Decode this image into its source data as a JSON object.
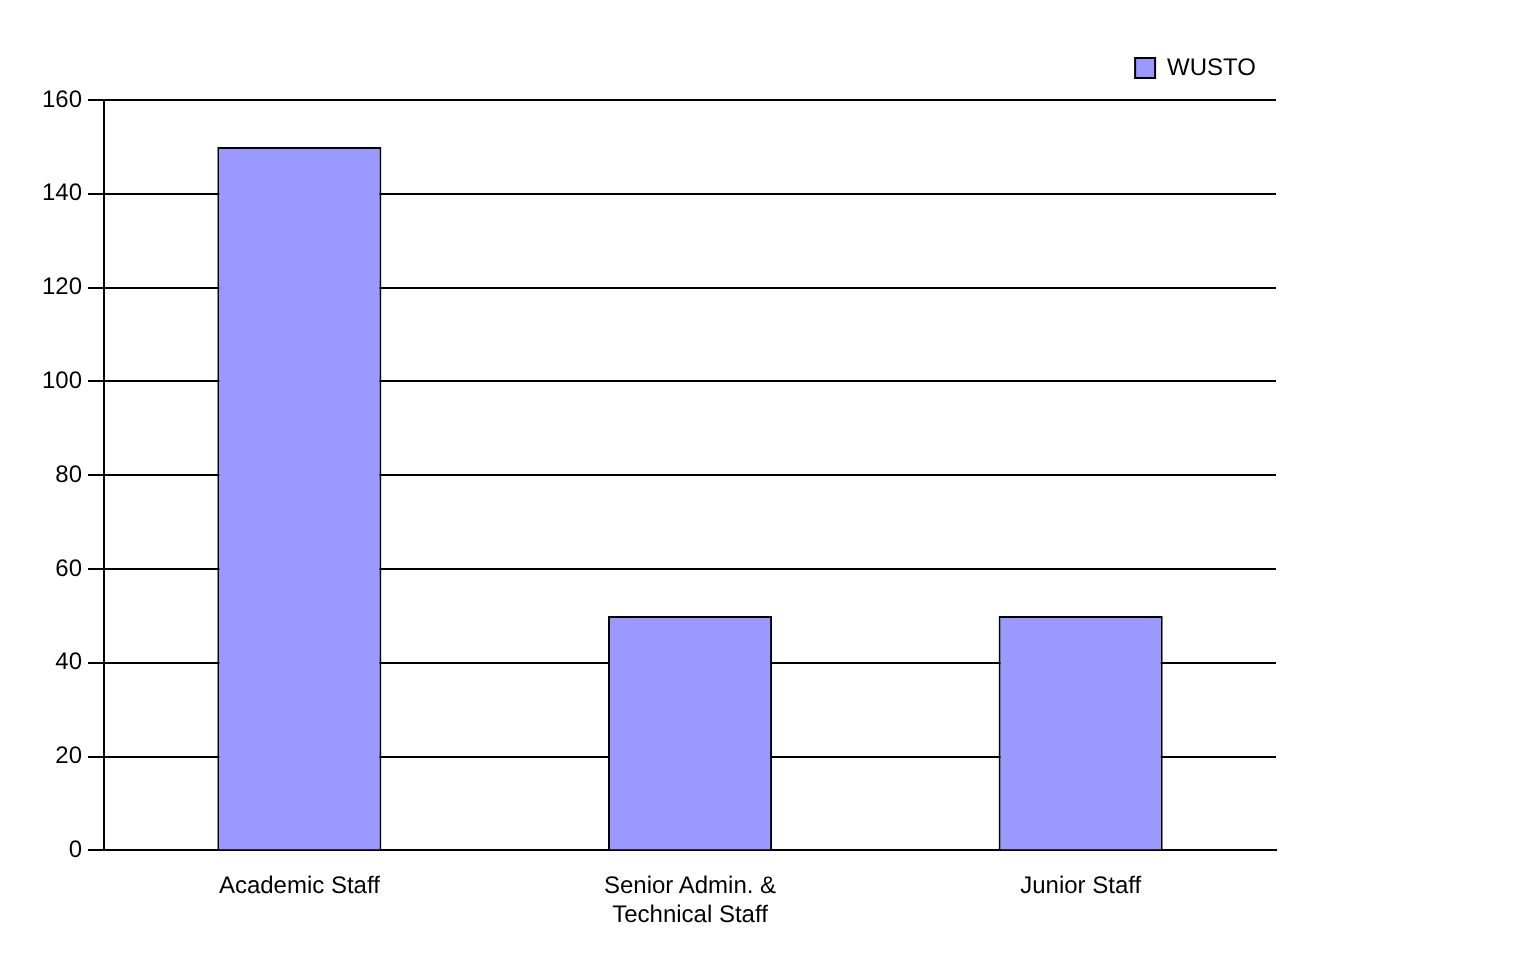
{
  "chart_data": {
    "type": "bar",
    "categories": [
      "Academic Staff",
      "Senior Admin. & Technical Staff",
      "Junior Staff"
    ],
    "series": [
      {
        "name": "WUSTO",
        "color": "#9999ff",
        "values": [
          150,
          50,
          50
        ]
      }
    ],
    "ylim": [
      0,
      160
    ],
    "yticks": [
      0,
      20,
      40,
      60,
      80,
      100,
      120,
      140,
      160
    ],
    "grid": "y",
    "legend": "top right"
  }
}
